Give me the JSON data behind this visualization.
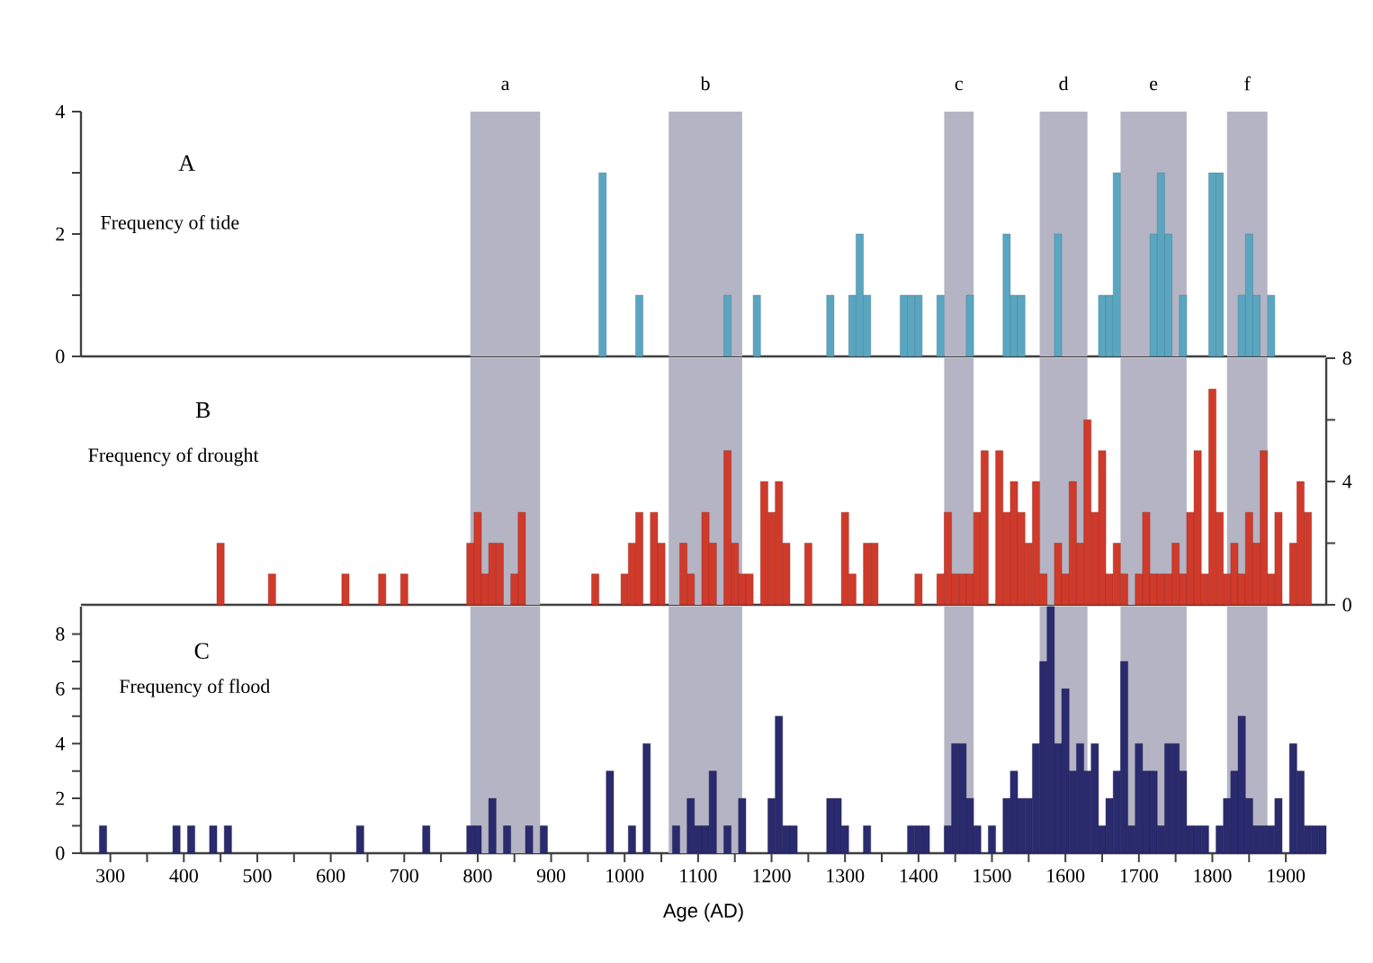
{
  "chart_data": [
    {
      "type": "bar",
      "title": "A",
      "subtitle": "Frequency of tide",
      "xlim": [
        260,
        1955
      ],
      "ylim": [
        0,
        4
      ],
      "yticks": [
        0,
        {
          "value": 1,
          "label": null
        },
        2,
        {
          "value": 3,
          "label": null
        },
        4
      ],
      "tick_labels": "y",
      "series": [
        {
          "color": "#5aa6c0",
          "x": [
            970,
            1020,
            1140,
            1180,
            1280,
            1310,
            1320,
            1330,
            1380,
            1390,
            1400,
            1430,
            1470,
            1520,
            1530,
            1540,
            1590,
            1650,
            1660,
            1670,
            1720,
            1730,
            1740,
            1760,
            1800,
            1810,
            1840,
            1850,
            1860,
            1880
          ],
          "values": [
            3,
            1,
            1,
            1,
            1,
            1,
            2,
            1,
            1,
            1,
            1,
            1,
            1,
            2,
            1,
            1,
            2,
            1,
            1,
            3,
            2,
            3,
            2,
            1,
            3,
            3,
            1,
            2,
            1,
            1
          ]
        }
      ],
      "bands": [
        {
          "axis": "x",
          "from": 790,
          "to": 885,
          "label": "a",
          "color": "#b4b4c4"
        },
        {
          "axis": "x",
          "from": 1060,
          "to": 1160,
          "label": "b",
          "color": "#b4b4c4"
        },
        {
          "axis": "x",
          "from": 1435,
          "to": 1475,
          "label": "c",
          "color": "#b4b4c4"
        },
        {
          "axis": "x",
          "from": 1565,
          "to": 1630,
          "label": "d",
          "color": "#b4b4c4"
        },
        {
          "axis": "x",
          "from": 1675,
          "to": 1765,
          "label": "e",
          "color": "#b4b4c4"
        },
        {
          "axis": "x",
          "from": 1820,
          "to": 1875,
          "label": "f",
          "color": "#b4b4c4"
        }
      ]
    },
    {
      "type": "bar",
      "title": "B",
      "subtitle": "Frequency of drought",
      "xlim": [
        260,
        1955
      ],
      "y2lim": [
        0,
        8
      ],
      "y2ticks": [
        0,
        {
          "value": 2,
          "label": null
        },
        4,
        {
          "value": 6,
          "label": null
        },
        8
      ],
      "tick_labels": "y",
      "series": [
        {
          "axis": "y2",
          "color": "#d03a2a",
          "x": [
            450,
            520,
            620,
            670,
            700,
            790,
            800,
            810,
            820,
            830,
            850,
            860,
            960,
            1000,
            1010,
            1020,
            1040,
            1050,
            1080,
            1090,
            1110,
            1120,
            1140,
            1150,
            1160,
            1170,
            1190,
            1200,
            1210,
            1220,
            1250,
            1300,
            1310,
            1330,
            1340,
            1400,
            1430,
            1440,
            1450,
            1460,
            1470,
            1480,
            1490,
            1510,
            1520,
            1530,
            1540,
            1550,
            1560,
            1570,
            1590,
            1600,
            1610,
            1620,
            1630,
            1640,
            1650,
            1660,
            1670,
            1680,
            1700,
            1710,
            1720,
            1730,
            1740,
            1750,
            1760,
            1770,
            1780,
            1790,
            1800,
            1810,
            1820,
            1830,
            1840,
            1850,
            1860,
            1870,
            1880,
            1890,
            1910,
            1920,
            1930
          ],
          "values": [
            2,
            1,
            1,
            1,
            1,
            2,
            3,
            1,
            2,
            2,
            1,
            3,
            1,
            1,
            2,
            3,
            3,
            2,
            2,
            1,
            3,
            2,
            5,
            2,
            1,
            1,
            4,
            3,
            4,
            2,
            2,
            3,
            1,
            2,
            2,
            1,
            1,
            3,
            1,
            1,
            1,
            3,
            5,
            5,
            3,
            4,
            3,
            2,
            4,
            1,
            2,
            1,
            4,
            2,
            6,
            3,
            5,
            1,
            2,
            1,
            1,
            3,
            1,
            1,
            1,
            2,
            1,
            3,
            5,
            1,
            7,
            3,
            1,
            2,
            1,
            3,
            2,
            5,
            1,
            3,
            2,
            4,
            3
          ]
        }
      ],
      "bands": [
        {
          "axis": "x",
          "from": 790,
          "to": 885,
          "color": "#b4b4c4"
        },
        {
          "axis": "x",
          "from": 1060,
          "to": 1160,
          "color": "#b4b4c4"
        },
        {
          "axis": "x",
          "from": 1435,
          "to": 1475,
          "color": "#b4b4c4"
        },
        {
          "axis": "x",
          "from": 1565,
          "to": 1630,
          "color": "#b4b4c4"
        },
        {
          "axis": "x",
          "from": 1675,
          "to": 1765,
          "color": "#b4b4c4"
        },
        {
          "axis": "x",
          "from": 1820,
          "to": 1875,
          "color": "#b4b4c4"
        }
      ]
    },
    {
      "type": "bar",
      "title": "C",
      "subtitle": "Frequency of  flood",
      "xlabel": "Age (AD)",
      "xlim": [
        260,
        1955
      ],
      "ylim": [
        0,
        9
      ],
      "yticks": [
        0,
        {
          "value": 1,
          "label": null
        },
        2,
        {
          "value": 3,
          "label": null
        },
        4,
        {
          "value": 5,
          "label": null
        },
        6,
        {
          "value": 7,
          "label": null
        },
        8
      ],
      "xticks": [
        300,
        {
          "value": 350,
          "label": null
        },
        400,
        {
          "value": 450,
          "label": null
        },
        500,
        {
          "value": 550,
          "label": null
        },
        600,
        {
          "value": 650,
          "label": null
        },
        700,
        {
          "value": 750,
          "label": null
        },
        800,
        {
          "value": 850,
          "label": null
        },
        900,
        {
          "value": 950,
          "label": null
        },
        1000,
        {
          "value": 1050,
          "label": null
        },
        1100,
        {
          "value": 1150,
          "label": null
        },
        1200,
        {
          "value": 1250,
          "label": null
        },
        1300,
        {
          "value": 1350,
          "label": null
        },
        1400,
        {
          "value": 1450,
          "label": null
        },
        1500,
        {
          "value": 1550,
          "label": null
        },
        1600,
        {
          "value": 1650,
          "label": null
        },
        1700,
        {
          "value": 1750,
          "label": null
        },
        1800,
        {
          "value": 1850,
          "label": null
        },
        1900
      ],
      "series": [
        {
          "color": "#2a2a6e",
          "x": [
            290,
            390,
            410,
            440,
            460,
            640,
            730,
            790,
            800,
            820,
            840,
            870,
            890,
            980,
            1010,
            1030,
            1070,
            1090,
            1100,
            1110,
            1120,
            1140,
            1160,
            1200,
            1210,
            1220,
            1230,
            1280,
            1290,
            1300,
            1330,
            1390,
            1400,
            1410,
            1440,
            1450,
            1460,
            1470,
            1480,
            1500,
            1520,
            1530,
            1540,
            1550,
            1560,
            1570,
            1580,
            1590,
            1600,
            1610,
            1620,
            1630,
            1640,
            1650,
            1660,
            1670,
            1680,
            1690,
            1700,
            1710,
            1720,
            1730,
            1740,
            1750,
            1760,
            1770,
            1780,
            1790,
            1810,
            1820,
            1830,
            1840,
            1850,
            1860,
            1870,
            1880,
            1890,
            1910,
            1920,
            1930,
            1940,
            1950
          ],
          "values": [
            1,
            1,
            1,
            1,
            1,
            1,
            1,
            1,
            1,
            2,
            1,
            1,
            1,
            3,
            1,
            4,
            1,
            2,
            1,
            1,
            3,
            1,
            2,
            2,
            5,
            1,
            1,
            2,
            2,
            1,
            1,
            1,
            1,
            1,
            1,
            4,
            4,
            2,
            1,
            1,
            2,
            3,
            2,
            2,
            4,
            7,
            9,
            4,
            6,
            3,
            4,
            3,
            4,
            1,
            2,
            3,
            7,
            1,
            4,
            3,
            3,
            1,
            4,
            4,
            3,
            1,
            1,
            1,
            1,
            2,
            3,
            5,
            2,
            1,
            1,
            1,
            2,
            4,
            3,
            1,
            1,
            1
          ]
        }
      ],
      "bands": [
        {
          "axis": "x",
          "from": 790,
          "to": 885,
          "color": "#b4b4c4"
        },
        {
          "axis": "x",
          "from": 1060,
          "to": 1160,
          "color": "#b4b4c4"
        },
        {
          "axis": "x",
          "from": 1435,
          "to": 1475,
          "color": "#b4b4c4"
        },
        {
          "axis": "x",
          "from": 1565,
          "to": 1630,
          "color": "#b4b4c4"
        },
        {
          "axis": "x",
          "from": 1675,
          "to": 1765,
          "color": "#b4b4c4"
        },
        {
          "axis": "x",
          "from": 1820,
          "to": 1875,
          "color": "#b4b4c4"
        }
      ]
    }
  ]
}
